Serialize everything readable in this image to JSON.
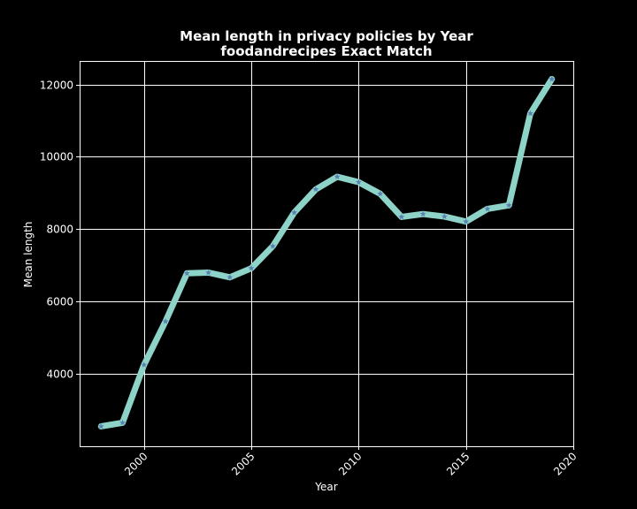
{
  "chart_data": {
    "type": "line",
    "title": "Mean length in privacy policies by Year",
    "subtitle": "foodandrecipes Exact Match",
    "xlabel": "Year",
    "ylabel": "Mean length",
    "xlim": [
      1997,
      2020
    ],
    "ylim": [
      2000,
      12650
    ],
    "xticks": [
      2000,
      2005,
      2010,
      2015,
      2020
    ],
    "yticks": [
      4000,
      6000,
      8000,
      10000,
      12000
    ],
    "grid": true,
    "x": [
      1998,
      1999,
      2000,
      2001,
      2002,
      2003,
      2004,
      2005,
      2006,
      2007,
      2008,
      2009,
      2010,
      2011,
      2012,
      2013,
      2014,
      2015,
      2016,
      2017,
      2018,
      2019
    ],
    "series": [
      {
        "values": [
          2550,
          2650,
          4250,
          5450,
          6780,
          6800,
          6670,
          6920,
          7530,
          8460,
          9100,
          9450,
          9300,
          8980,
          8340,
          8420,
          8350,
          8210,
          8560,
          8660,
          11200,
          12150
        ],
        "line_color": "#8dd3c7",
        "marker": "star",
        "marker_color": "#5a7fb5"
      }
    ]
  }
}
